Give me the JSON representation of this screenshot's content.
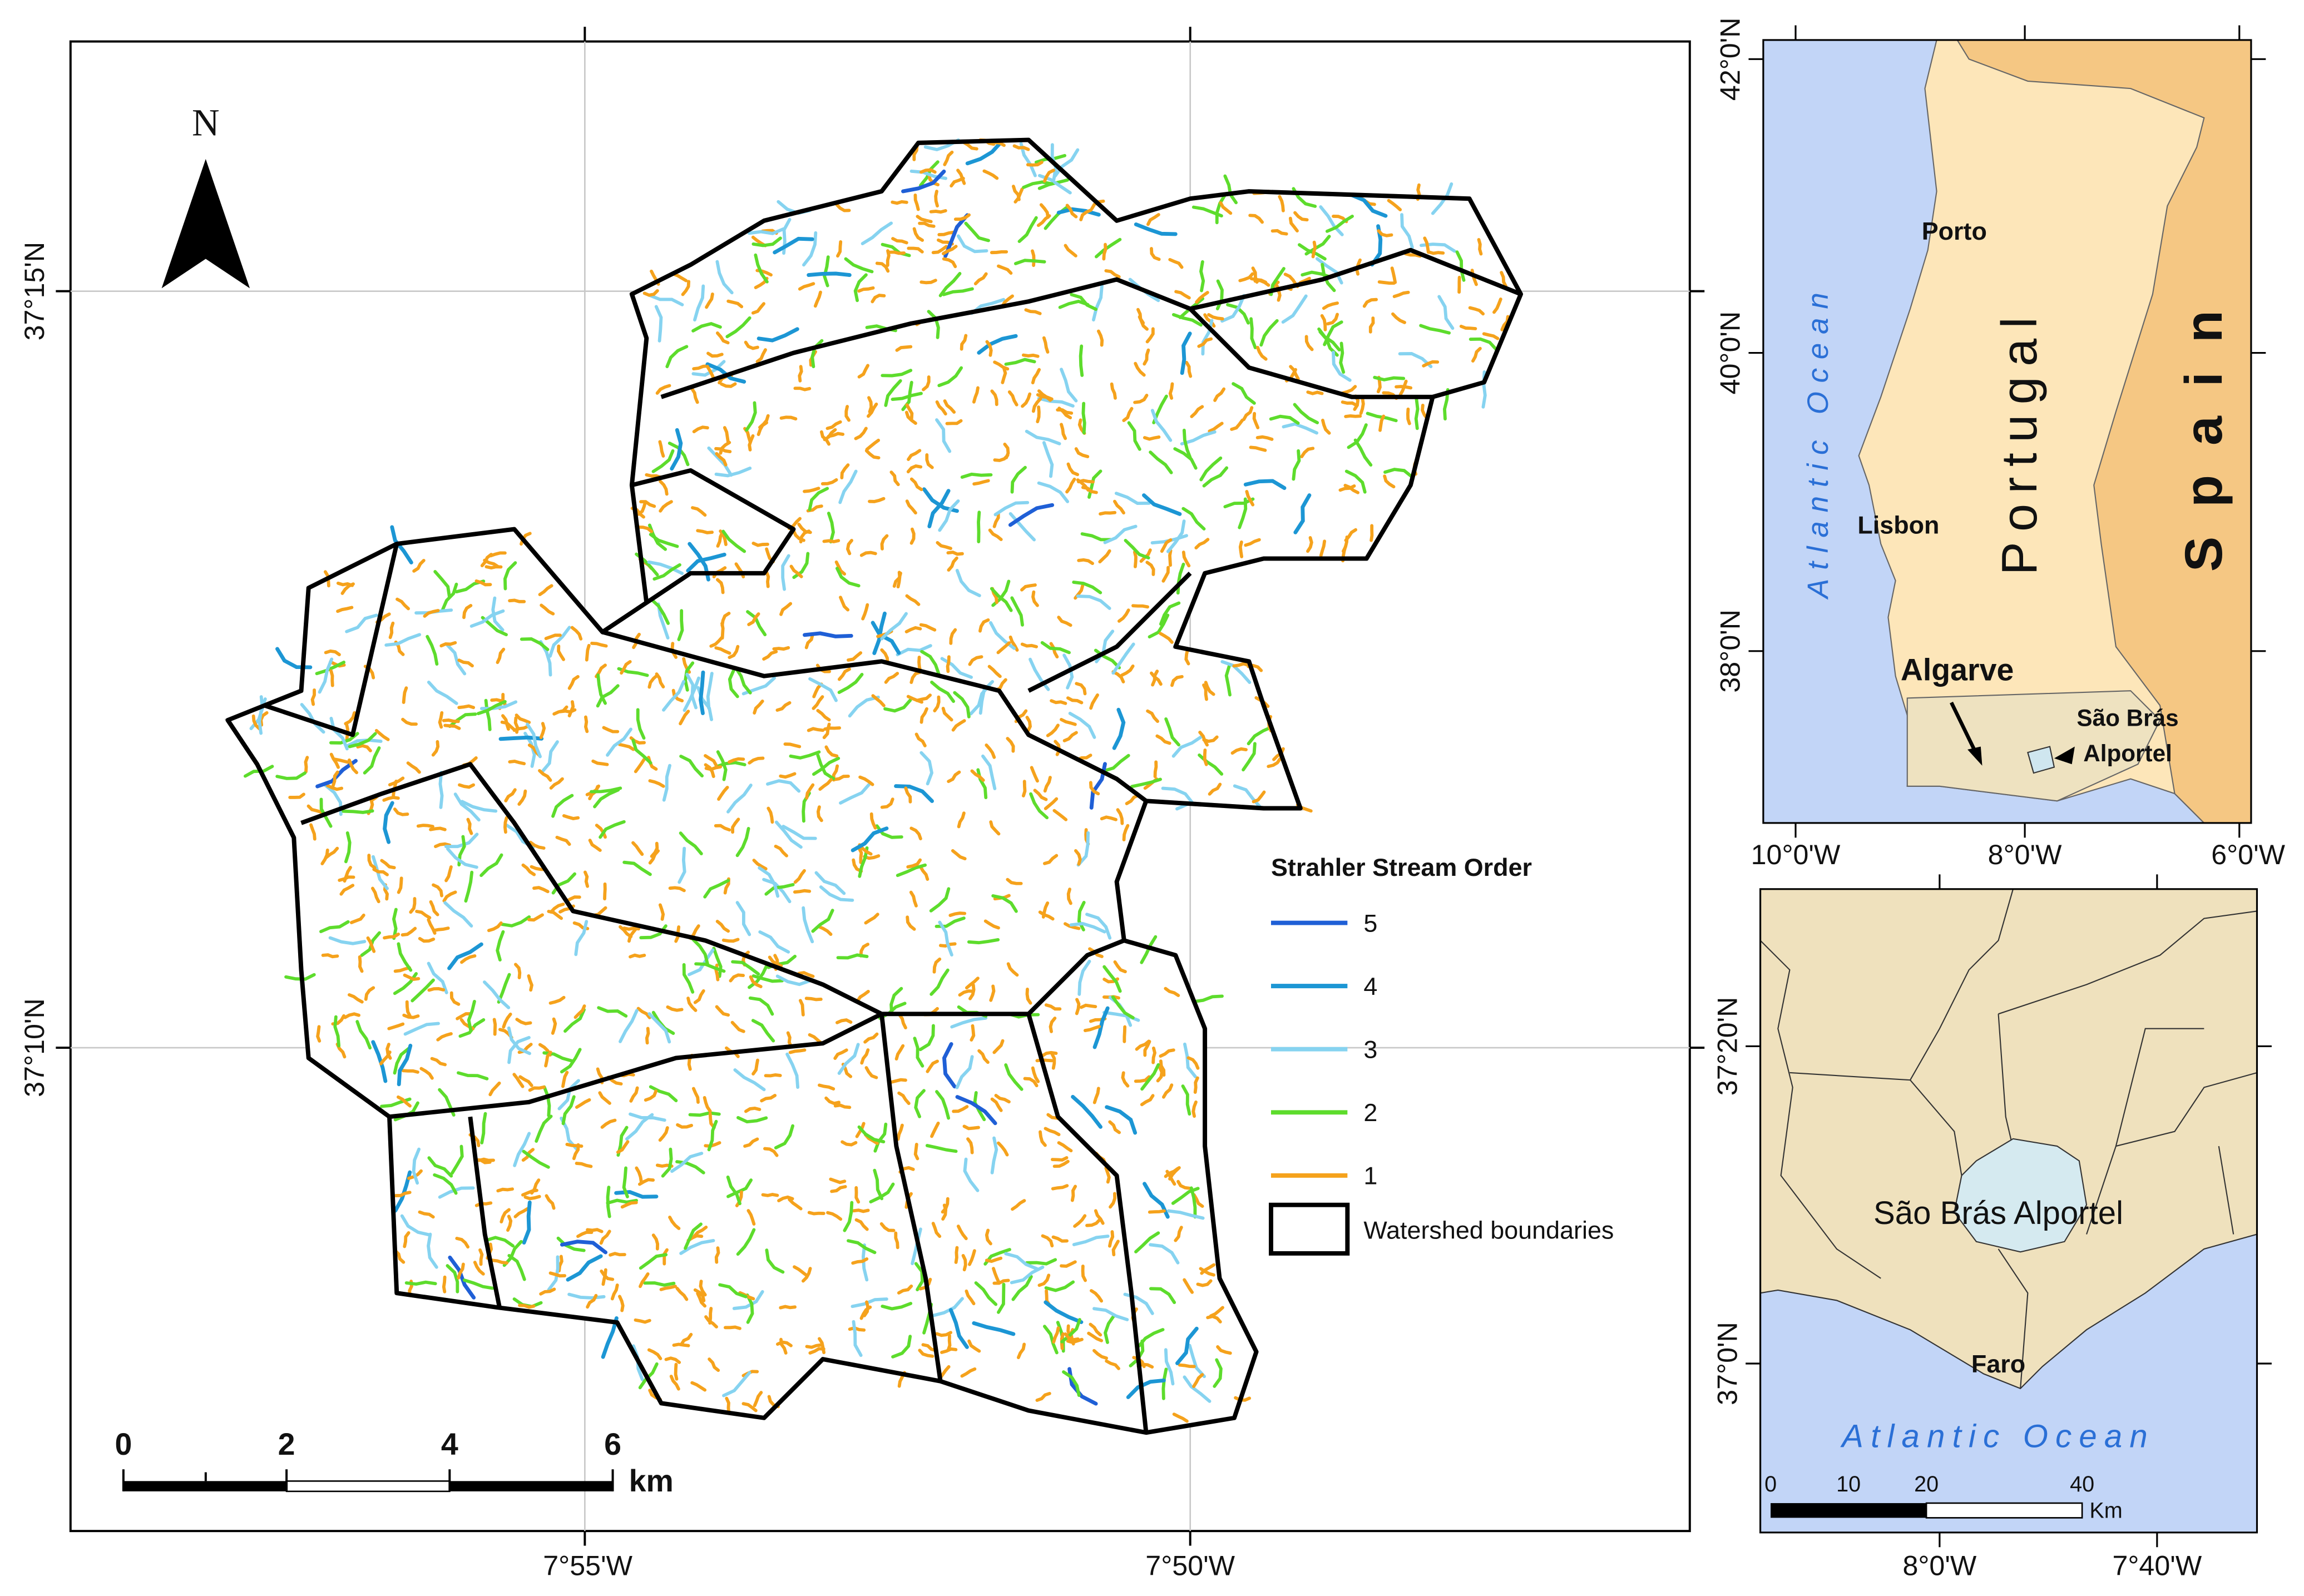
{
  "main_map": {
    "north_label": "N",
    "x_labels": [
      "7°55'W",
      "7°50'W"
    ],
    "y_labels": [
      "37°15'N",
      "37°10'N"
    ],
    "scale_bar": {
      "ticks": [
        "0",
        "2",
        "4",
        "6"
      ],
      "unit": "km"
    },
    "legend": {
      "title": "Strahler Stream Order",
      "items": [
        {
          "label": "5",
          "color": "#1f5fd6"
        },
        {
          "label": "4",
          "color": "#1c96d4"
        },
        {
          "label": "3",
          "color": "#86d3f0"
        },
        {
          "label": "2",
          "color": "#5ddc2c"
        },
        {
          "label": "1",
          "color": "#f5a21c"
        }
      ],
      "boundary_label": "Watershed boundaries"
    }
  },
  "inset_portugal": {
    "x_labels": [
      "10°0'W",
      "8°0'W",
      "6°0'W"
    ],
    "y_labels": [
      "42°0'N",
      "40°0'N",
      "38°0'N"
    ],
    "ocean": "Atlantic Ocean",
    "country": "Portugal",
    "neighbor": "Spain",
    "cities": [
      "Porto",
      "Lisbon"
    ],
    "region": "Algarve",
    "study_area": [
      "São Brás",
      "Alportel"
    ]
  },
  "inset_algarve": {
    "x_labels": [
      "8°0'W",
      "7°40'W"
    ],
    "y_labels": [
      "37°20'N",
      "37°0'N"
    ],
    "study_area": "São Brás Alportel",
    "city": "Faro",
    "ocean": "Atlantic Ocean",
    "scale_bar": {
      "ticks": [
        "0",
        "10",
        "20",
        "40"
      ],
      "unit": "Km"
    }
  }
}
